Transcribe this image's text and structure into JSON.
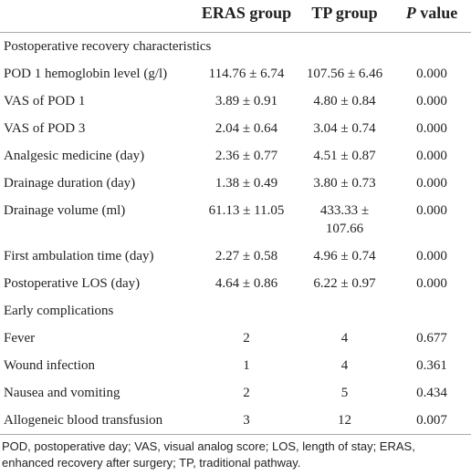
{
  "header": {
    "eras": "ERAS group",
    "tp": "TP group",
    "p_value": {
      "symbol": "P",
      "text": "value"
    }
  },
  "sections": [
    {
      "title": "Postoperative recovery characteristics",
      "rows": [
        [
          "POD 1 hemoglobin level (g/l)",
          "114.76 ± 6.74",
          "107.56 ± 6.46",
          "0.000"
        ],
        [
          "VAS of POD 1",
          "3.89 ± 0.91",
          "4.80 ± 0.84",
          "0.000"
        ],
        [
          "VAS of POD 3",
          "2.04 ± 0.64",
          "3.04 ± 0.74",
          "0.000"
        ],
        [
          "Analgesic medicine (day)",
          "2.36 ± 0.77",
          "4.51 ± 0.87",
          "0.000"
        ],
        [
          "Drainage duration (day)",
          "1.38 ± 0.49",
          "3.80 ± 0.73",
          "0.000"
        ],
        [
          "Drainage volume (ml)",
          "61.13 ± 11.05",
          "433.33 ± 107.66",
          "0.000"
        ],
        [
          "First ambulation time (day)",
          "2.27 ± 0.58",
          "4.96 ± 0.74",
          "0.000"
        ],
        [
          "Postoperative LOS (day)",
          "4.64 ± 0.86",
          "6.22 ± 0.97",
          "0.000"
        ]
      ]
    },
    {
      "title": "Early complications",
      "rows": [
        [
          "Fever",
          "2",
          "4",
          "0.677"
        ],
        [
          "Wound infection",
          "1",
          "4",
          "0.361"
        ],
        [
          "Nausea and vomiting",
          "2",
          "5",
          "0.434"
        ],
        [
          "Allogeneic blood transfusion",
          "3",
          "12",
          "0.007"
        ]
      ]
    }
  ],
  "footnote": "POD, postoperative day; VAS, visual analog score; LOS, length of stay; ERAS, enhanced recovery after surgery; TP, traditional pathway."
}
